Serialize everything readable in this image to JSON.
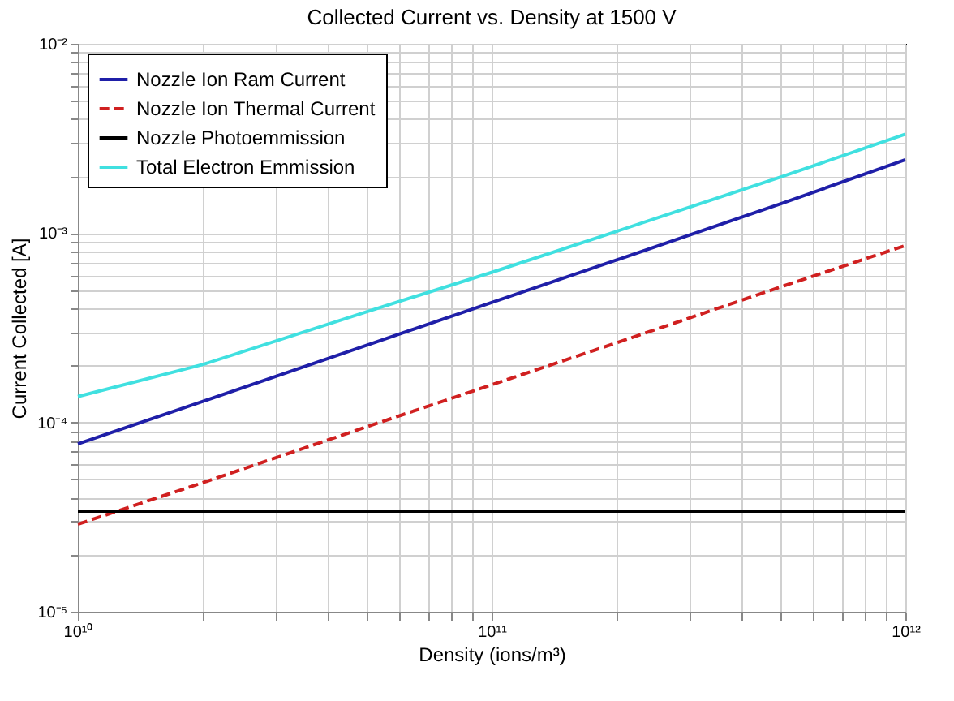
{
  "chart_data": {
    "type": "line",
    "title": "Collected Current vs. Density at 1500 V",
    "xlabel": "Density (ions/m³)",
    "ylabel": "Current Collected [A]",
    "x": [
      10000000000.0,
      20000000000.0,
      50000000000.0,
      100000000000.0,
      200000000000.0,
      500000000000.0,
      1000000000000.0
    ],
    "series": [
      {
        "name": "Nozzle Ion Ram Current",
        "color": "#1f1fa8",
        "line_style": "solid",
        "values": [
          7.7e-05,
          0.000129,
          0.000256,
          0.00043,
          0.00072,
          0.00143,
          0.00244
        ]
      },
      {
        "name": "Nozzle Ion Thermal Current",
        "color": "#d02020",
        "line_style": "dashed",
        "values": [
          2.9e-05,
          4.8e-05,
          9.5e-05,
          0.000158,
          0.000263,
          0.00052,
          0.00086
        ]
      },
      {
        "name": "Nozzle Photoemmission",
        "color": "#000000",
        "line_style": "solid",
        "values": [
          3.4e-05,
          3.4e-05,
          3.4e-05,
          3.4e-05,
          3.4e-05,
          3.4e-05,
          3.4e-05
        ]
      },
      {
        "name": "Total Electron Emmission",
        "color": "#40e0e0",
        "line_style": "solid",
        "values": [
          0.000137,
          0.000202,
          0.000385,
          0.00062,
          0.00102,
          0.00198,
          0.00333
        ]
      }
    ],
    "log": "xy",
    "xlim": [
      10000000000.0,
      1000000000000.0
    ],
    "ylim": [
      1e-05,
      0.01
    ],
    "xticks": [
      {
        "value": 10000000000.0,
        "label": "10¹⁰"
      },
      {
        "value": 20000000000.0,
        "label": null
      },
      {
        "value": 30000000000.0,
        "label": null
      },
      {
        "value": 40000000000.0,
        "label": null
      },
      {
        "value": 50000000000.0,
        "label": null
      },
      {
        "value": 60000000000.0,
        "label": null
      },
      {
        "value": 70000000000.0,
        "label": null
      },
      {
        "value": 80000000000.0,
        "label": null
      },
      {
        "value": 90000000000.0,
        "label": null
      },
      {
        "value": 100000000000.0,
        "label": "10¹¹"
      },
      {
        "value": 200000000000.0,
        "label": null
      },
      {
        "value": 300000000000.0,
        "label": null
      },
      {
        "value": 400000000000.0,
        "label": null
      },
      {
        "value": 500000000000.0,
        "label": null
      },
      {
        "value": 600000000000.0,
        "label": null
      },
      {
        "value": 700000000000.0,
        "label": null
      },
      {
        "value": 800000000000.0,
        "label": null
      },
      {
        "value": 900000000000.0,
        "label": null
      },
      {
        "value": 1000000000000.0,
        "label": "10¹²"
      }
    ],
    "yticks": [
      {
        "value": 1e-05,
        "label": "10⁻⁵"
      },
      {
        "value": 2e-05,
        "label": null
      },
      {
        "value": 3e-05,
        "label": null
      },
      {
        "value": 4e-05,
        "label": null
      },
      {
        "value": 5e-05,
        "label": null
      },
      {
        "value": 6e-05,
        "label": null
      },
      {
        "value": 7e-05,
        "label": null
      },
      {
        "value": 8e-05,
        "label": null
      },
      {
        "value": 9e-05,
        "label": null
      },
      {
        "value": 0.0001,
        "label": "10⁻⁴"
      },
      {
        "value": 0.0002,
        "label": null
      },
      {
        "value": 0.0003,
        "label": null
      },
      {
        "value": 0.0004,
        "label": null
      },
      {
        "value": 0.0005,
        "label": null
      },
      {
        "value": 0.0006,
        "label": null
      },
      {
        "value": 0.0007,
        "label": null
      },
      {
        "value": 0.0008,
        "label": null
      },
      {
        "value": 0.0009,
        "label": null
      },
      {
        "value": 0.001,
        "label": "10⁻³"
      },
      {
        "value": 0.002,
        "label": null
      },
      {
        "value": 0.003,
        "label": null
      },
      {
        "value": 0.004,
        "label": null
      },
      {
        "value": 0.005,
        "label": null
      },
      {
        "value": 0.006,
        "label": null
      },
      {
        "value": 0.007,
        "label": null
      },
      {
        "value": 0.008,
        "label": null
      },
      {
        "value": 0.009,
        "label": null
      },
      {
        "value": 0.01,
        "label": "10⁻²"
      }
    ],
    "grid": true,
    "legend": "top left"
  }
}
